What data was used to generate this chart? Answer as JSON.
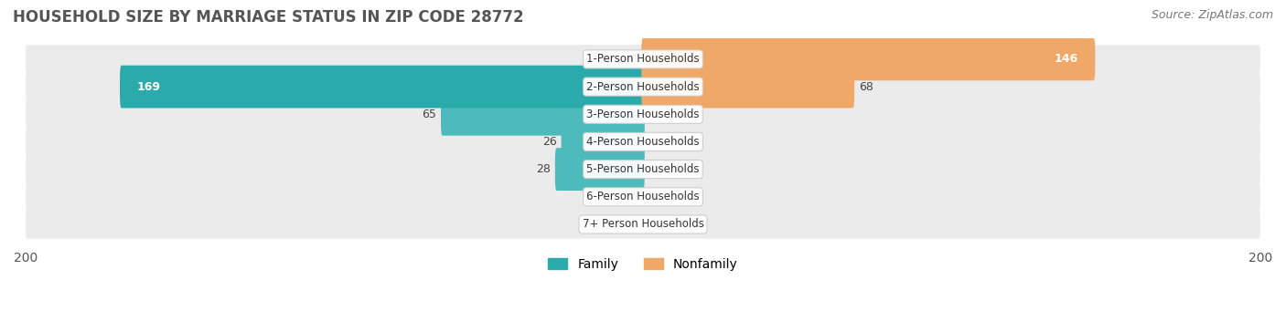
{
  "title": "HOUSEHOLD SIZE BY MARRIAGE STATUS IN ZIP CODE 28772",
  "source": "Source: ZipAtlas.com",
  "categories": [
    "7+ Person Households",
    "6-Person Households",
    "5-Person Households",
    "4-Person Households",
    "3-Person Households",
    "2-Person Households",
    "1-Person Households"
  ],
  "family_values": [
    0,
    0,
    28,
    26,
    65,
    169,
    0
  ],
  "nonfamily_values": [
    0,
    0,
    0,
    0,
    0,
    68,
    146
  ],
  "family_color": "#4DBBBB",
  "nonfamily_color": "#F0A868",
  "family_color_large": "#2AAAAA",
  "xlim": 200,
  "bar_height": 0.55,
  "row_bg_color": "#E8E8E8",
  "row_bg_color_alt": "#F0F0F0",
  "label_fontsize": 9,
  "title_fontsize": 12,
  "source_fontsize": 9
}
